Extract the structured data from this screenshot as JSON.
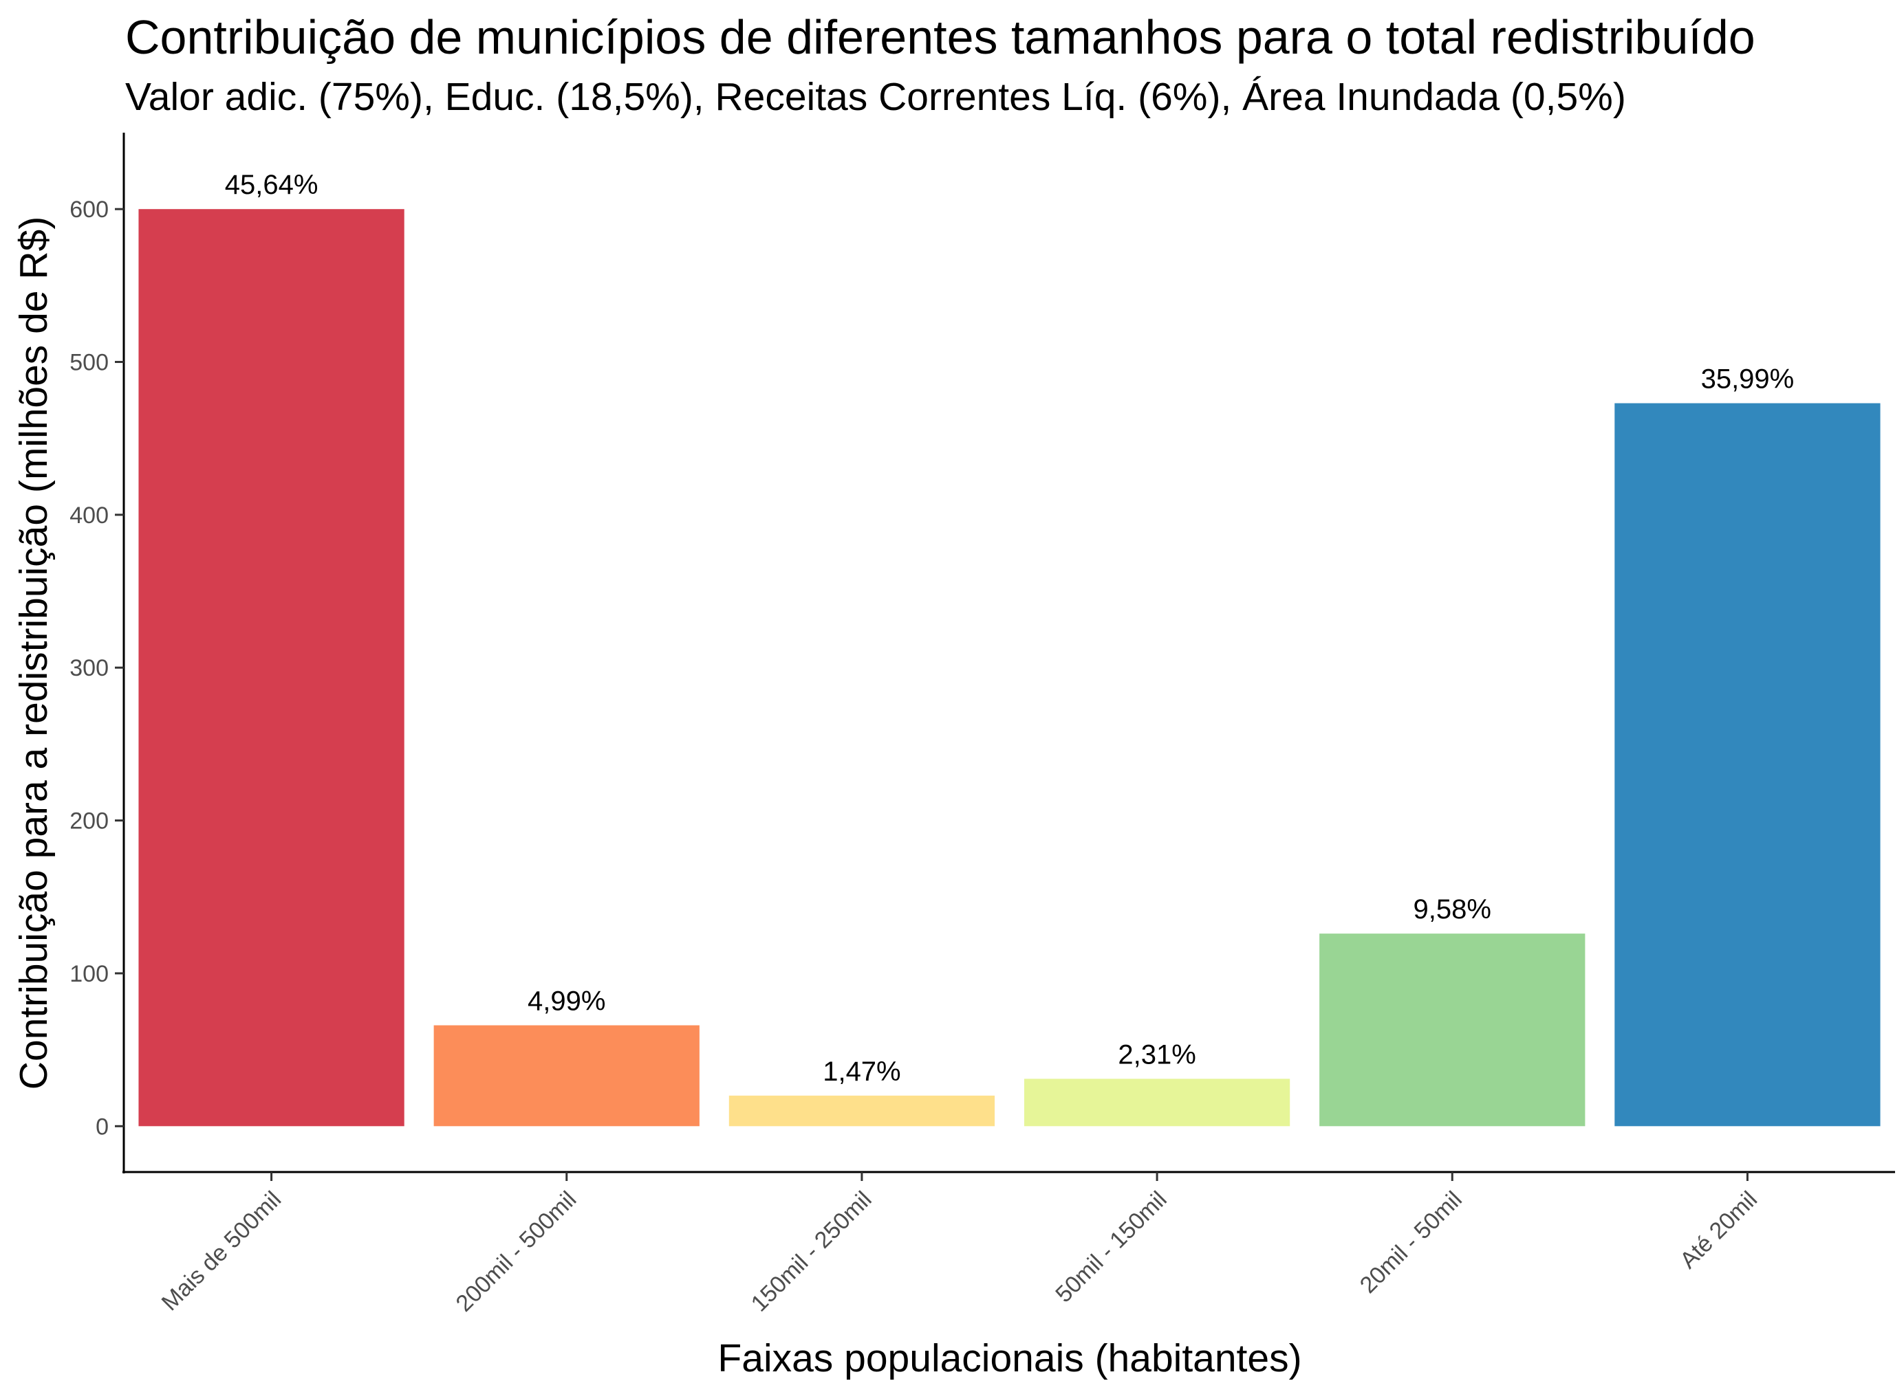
{
  "chart_data": {
    "type": "bar",
    "title": "Contribuição de municípios de diferentes tamanhos para o total redistribuído",
    "subtitle": "Valor adic. (75%), Educ. (18,5%), Receitas Correntes Líq. (6%), Área Inundada (0,5%)",
    "xlabel": "Faixas populacionais (habitantes)",
    "ylabel": "Contribuição para a redistribuição (milhões de R$)",
    "categories": [
      "Mais de 500mil",
      "200mil - 500mil",
      "150mil - 250mil",
      "50mil - 150mil",
      "20mil - 50mil",
      "Até 20mil"
    ],
    "values": [
      600,
      66,
      20,
      31,
      126,
      473
    ],
    "data_labels": [
      "45,64%",
      "4,99%",
      "1,47%",
      "2,31%",
      "9,58%",
      "35,99%"
    ],
    "colors": [
      "#D53E4F",
      "#FC8D59",
      "#FEE08B",
      "#E6F598",
      "#99D594",
      "#3288BD"
    ],
    "ylim": [
      -30,
      650
    ],
    "yticks": [
      0,
      100,
      200,
      300,
      400,
      500,
      600
    ],
    "grid": false,
    "legend": "none"
  }
}
